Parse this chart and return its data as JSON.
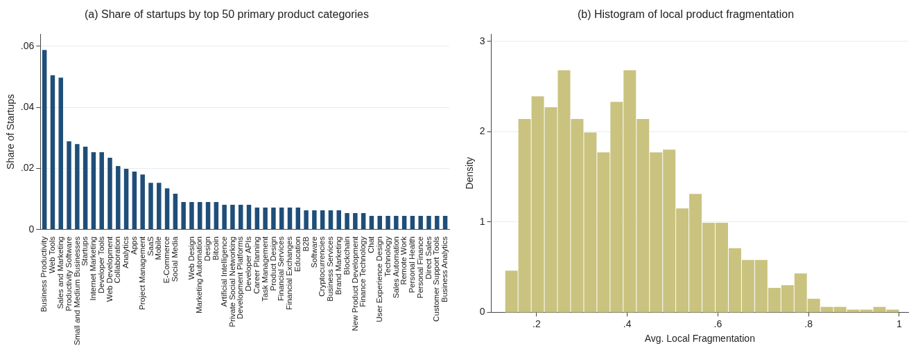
{
  "chart_data": [
    {
      "type": "bar",
      "title": "(a) Share of startups by top 50 primary product categories",
      "ylabel": "Share of Startups",
      "categories": [
        "Business Productivity",
        "Web Tools",
        "Sales and Marketing",
        "Productivity Software",
        "Small and Medium Businesses",
        "Startups",
        "Internet Marketing",
        "Developer Tools",
        "Web Development",
        "Collaboration",
        "Analytics",
        "Apps",
        "Project Management",
        "SaaS",
        "Mobile",
        "E-Commerce",
        "Social Media",
        null,
        "Web Design",
        "Marketing Automation",
        "Design",
        "Bitcoin",
        "Artificial Intelligence",
        "Private Social Networking",
        "Development Platforms",
        "Developer APIs",
        "Career Planning",
        "Task Management",
        "Product Design",
        "Financial Services",
        "Financial Exchanges",
        "Education",
        "B2B",
        "Software",
        "Cryptocurrencies",
        "Business Services",
        "Brand Marketing",
        "Blockchain",
        "New Product Development",
        "Finance Technology",
        "Chat",
        "User Experience Design",
        "Technology",
        "Sales Automation",
        "Remote Work",
        "Personal Health",
        "Personal Finance",
        "Direct Sales",
        "Customer Support Tools",
        "Business Analytics"
      ],
      "values": [
        0.0588,
        0.0505,
        0.0497,
        0.0289,
        0.028,
        0.0271,
        0.0253,
        0.0253,
        0.0235,
        0.0208,
        0.0199,
        0.019,
        0.018,
        0.0153,
        0.0153,
        0.0135,
        0.0117,
        0.009,
        0.009,
        0.009,
        0.009,
        0.009,
        0.0081,
        0.0081,
        0.0081,
        0.0081,
        0.0072,
        0.0072,
        0.0072,
        0.0072,
        0.0072,
        0.0072,
        0.0063,
        0.0063,
        0.0063,
        0.0063,
        0.0063,
        0.0054,
        0.0054,
        0.0054,
        0.0045,
        0.0045,
        0.0045,
        0.0045,
        0.0045,
        0.0045,
        0.0045,
        0.0045,
        0.0045,
        0.0045
      ],
      "color": "#1f4e79",
      "ylim": [
        0,
        0.064
      ],
      "yticks": [
        {
          "value": 0,
          "label": "0"
        },
        {
          "value": 0.02,
          "label": ".02"
        },
        {
          "value": 0.04,
          "label": ".04"
        },
        {
          "value": 0.06,
          "label": ".06"
        }
      ],
      "grid": "y"
    },
    {
      "type": "histogram",
      "title": "(b) Histogram of local product fragmentation",
      "xlabel": "Avg. Local Fragmentation",
      "ylabel": "Density",
      "bins": [
        0.13,
        0.159,
        0.188,
        0.217,
        0.246,
        0.275,
        0.304,
        0.333,
        0.362,
        0.391,
        0.42,
        0.449,
        0.478,
        0.507,
        0.536,
        0.565,
        0.594,
        0.623,
        0.652,
        0.681,
        0.71,
        0.739,
        0.768,
        0.797,
        0.826,
        0.855,
        0.884,
        0.913,
        0.942,
        0.971,
        1.0
      ],
      "values": [
        0.46,
        2.14,
        2.39,
        2.27,
        2.68,
        2.14,
        1.99,
        1.77,
        2.33,
        2.68,
        2.14,
        1.77,
        1.8,
        1.15,
        1.31,
        0.99,
        0.99,
        0.71,
        0.58,
        0.58,
        0.27,
        0.3,
        0.43,
        0.15,
        0.06,
        0.06,
        0.03,
        0.03,
        0.06,
        0.03
      ],
      "color": "#c9c37f",
      "xlim": [
        0.1,
        1.02
      ],
      "xticks": [
        {
          "value": 0.2,
          "label": ".2"
        },
        {
          "value": 0.4,
          "label": ".4"
        },
        {
          "value": 0.6,
          "label": ".6"
        },
        {
          "value": 0.8,
          "label": ".8"
        },
        {
          "value": 1,
          "label": "1"
        }
      ],
      "ylim": [
        0,
        3.08
      ],
      "yticks": [
        0,
        1,
        2,
        3
      ],
      "grid": "y"
    }
  ]
}
